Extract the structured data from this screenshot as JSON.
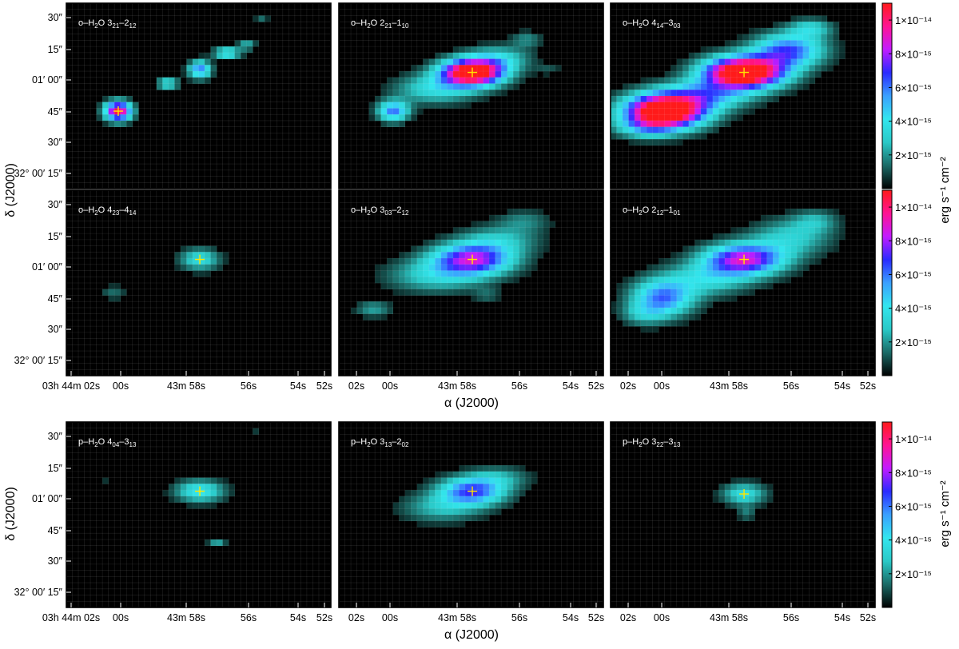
{
  "figure": {
    "colorbar_label": "erg s⁻¹ cm⁻²",
    "colorbar_ticks": [
      "1×10⁻¹⁴",
      "8×10⁻¹⁵",
      "6×10⁻¹⁵",
      "4×10⁻¹⁵",
      "2×10⁻¹⁵"
    ],
    "colormap": [
      "#000000",
      "#1a6a66",
      "#2ac9c7",
      "#33e6ee",
      "#3aa0ff",
      "#2a2aff",
      "#c21cff",
      "#ff1493",
      "#ff1a1a"
    ],
    "marker_color": "#ffe600",
    "background_color": "#000000"
  },
  "chart_data": [
    {
      "type": "heatmap",
      "panel": "o-H2O 321-212",
      "label": {
        "prefix": "o–H",
        "sub": "2",
        "mid": "O 3",
        "sub1": "21",
        "mid2": "–2",
        "sub2": "12"
      },
      "xlabel": "",
      "ylabel": "",
      "y_ticks": [
        "30″",
        "15″",
        "01′ 00″",
        "45″",
        "30″",
        "32° 00′ 15″"
      ],
      "x_ticks": [],
      "xlim_s": [
        2.5,
        51.8
      ],
      "ylim_arcsec": [
        10,
        33
      ],
      "peak_flux": 1.1e-14,
      "blobs": [
        {
          "ra_s": 0.4,
          "dec": 36,
          "amp": 1.05e-14,
          "sx": 0.3,
          "sy": 2.6
        },
        {
          "ra_s": 57.1,
          "dec": 51,
          "amp": 6e-15,
          "sx": 0.25,
          "sy": 2.4
        },
        {
          "ra_s": 58.4,
          "dec": 46,
          "amp": 3.5e-15,
          "sx": 0.25,
          "sy": 1.8
        },
        {
          "ra_s": 56.0,
          "dec": 57,
          "amp": 4.5e-15,
          "sx": 0.3,
          "sy": 1.5
        },
        {
          "ra_s": 55.2,
          "dec": 60,
          "amp": 2.5e-15,
          "sx": 0.2,
          "sy": 1.5
        },
        {
          "ra_s": 54.6,
          "dec": 69,
          "amp": 1.5e-15,
          "sx": 0.15,
          "sy": 1.2
        }
      ]
    },
    {
      "type": "heatmap",
      "panel": "o-H2O 221-110",
      "label": {
        "prefix": "o–H",
        "sub": "2",
        "mid": "O 2",
        "sub1": "21",
        "mid2": "–1",
        "sub2": "10"
      },
      "xlabel": "",
      "ylabel": "",
      "y_ticks": [],
      "x_ticks": [],
      "xlim_s": [
        2.5,
        51.8
      ],
      "ylim_arcsec": [
        10,
        33
      ],
      "peak_flux": 1.1e-14,
      "blobs": [
        {
          "ra_s": 57.1,
          "dec": 50,
          "amp": 1.3e-14,
          "sx": 0.7,
          "sy": 3.6
        },
        {
          "ra_s": 58.6,
          "dec": 44,
          "amp": 3.5e-15,
          "sx": 0.9,
          "sy": 4.0
        },
        {
          "ra_s": 56.0,
          "dec": 55,
          "amp": 3e-15,
          "sx": 0.7,
          "sy": 3.5
        },
        {
          "ra_s": 0.3,
          "dec": 36,
          "amp": 6e-15,
          "sx": 0.35,
          "sy": 2.8
        },
        {
          "ra_s": 54.9,
          "dec": 62,
          "amp": 1.8e-15,
          "sx": 0.35,
          "sy": 2.2
        },
        {
          "ra_s": 54.0,
          "dec": 51,
          "amp": 1e-15,
          "sx": 0.3,
          "sy": 1.5
        }
      ]
    },
    {
      "type": "heatmap",
      "panel": "o-H2O 414-303",
      "label": {
        "prefix": "o–H",
        "sub": "2",
        "mid": "O 4",
        "sub1": "14",
        "mid2": "–3",
        "sub2": "03"
      },
      "xlabel": "",
      "ylabel": "",
      "y_ticks": [],
      "x_ticks": [],
      "xlim_s": [
        2.5,
        51.8
      ],
      "ylim_arcsec": [
        10,
        33
      ],
      "peak_flux": 1.1e-14,
      "blobs": [
        {
          "ra_s": 57.1,
          "dec": 50,
          "amp": 1.4e-14,
          "sx": 0.9,
          "sy": 4.2
        },
        {
          "ra_s": 0.3,
          "dec": 36,
          "amp": 1.4e-14,
          "sx": 0.9,
          "sy": 4.6
        },
        {
          "ra_s": 58.6,
          "dec": 42,
          "amp": 4.5e-15,
          "sx": 1.0,
          "sy": 4.0
        },
        {
          "ra_s": 55.3,
          "dec": 58,
          "amp": 6.5e-15,
          "sx": 0.8,
          "sy": 4.5
        },
        {
          "ra_s": 54.4,
          "dec": 66,
          "amp": 3e-15,
          "sx": 0.5,
          "sy": 2.5
        },
        {
          "ra_s": 1.1,
          "dec": 30,
          "amp": 3e-15,
          "sx": 0.7,
          "sy": 3.0
        }
      ]
    },
    {
      "type": "heatmap",
      "panel": "o-H2O 423-414",
      "label": {
        "prefix": "o–H",
        "sub": "2",
        "mid": "O 4",
        "sub1": "23",
        "mid2": "–4",
        "sub2": "14"
      },
      "xlabel": "",
      "ylabel": "δ (J2000)",
      "y_ticks": [
        "30″",
        "15″",
        "01′ 00″",
        "45″",
        "30″",
        "32° 00′ 15″"
      ],
      "x_ticks": [
        "03h 44m 02s",
        "00s",
        "43m 58s",
        "56s",
        "54s",
        "52s"
      ],
      "xlim_s": [
        2.5,
        51.8
      ],
      "ylim_arcsec": [
        10,
        33
      ],
      "peak_flux": 1.1e-14,
      "blobs": [
        {
          "ra_s": 57.1,
          "dec": 50,
          "amp": 3.6e-15,
          "sx": 0.45,
          "sy": 3.0
        },
        {
          "ra_s": 0.6,
          "dec": 38,
          "amp": 1.4e-15,
          "sx": 0.3,
          "sy": 2.0
        },
        {
          "ra_s": 1.8,
          "dec": 37,
          "amp": 9e-16,
          "sx": 0.25,
          "sy": 1.2
        }
      ]
    },
    {
      "type": "heatmap",
      "panel": "o-H2O 303-212",
      "label": {
        "prefix": "o–H",
        "sub": "2",
        "mid": "O 3",
        "sub1": "03",
        "mid2": "–2",
        "sub2": "12"
      },
      "xlabel": "α (J2000)",
      "ylabel": "",
      "y_ticks": [],
      "x_ticks": [
        "02s",
        "00s",
        "43m 58s",
        "56s",
        "54s",
        "52s"
      ],
      "xlim_s": [
        2.5,
        51.8
      ],
      "ylim_arcsec": [
        10,
        33
      ],
      "peak_flux": 1.1e-14,
      "blobs": [
        {
          "ra_s": 57.1,
          "dec": 50,
          "amp": 8e-15,
          "sx": 0.9,
          "sy": 4.2
        },
        {
          "ra_s": 58.6,
          "dec": 44,
          "amp": 3e-15,
          "sx": 1.1,
          "sy": 4.5
        },
        {
          "ra_s": 56.0,
          "dec": 57,
          "amp": 2.5e-15,
          "sx": 0.9,
          "sy": 4.0
        },
        {
          "ra_s": 1.1,
          "dec": 32,
          "amp": 2.2e-15,
          "sx": 0.4,
          "sy": 2.2
        },
        {
          "ra_s": 55.0,
          "dec": 64,
          "amp": 1.6e-15,
          "sx": 0.6,
          "sy": 3.0
        },
        {
          "ra_s": 56.5,
          "dec": 37,
          "amp": 1.2e-15,
          "sx": 0.3,
          "sy": 2.0
        }
      ]
    },
    {
      "type": "heatmap",
      "panel": "o-H2O 212-101",
      "label": {
        "prefix": "o–H",
        "sub": "2",
        "mid": "O 2",
        "sub1": "12",
        "mid2": "–1",
        "sub2": "01"
      },
      "xlabel": "",
      "ylabel": "",
      "y_ticks": [],
      "x_ticks": [
        "02s",
        "00s",
        "43m 58s",
        "56s",
        "54s",
        "52s"
      ],
      "xlim_s": [
        2.5,
        51.8
      ],
      "ylim_arcsec": [
        10,
        33
      ],
      "peak_flux": 1.1e-14,
      "blobs": [
        {
          "ra_s": 57.1,
          "dec": 50,
          "amp": 8.5e-15,
          "sx": 0.9,
          "sy": 4.2
        },
        {
          "ra_s": 0.4,
          "dec": 36,
          "amp": 6e-15,
          "sx": 0.7,
          "sy": 5.0
        },
        {
          "ra_s": 58.6,
          "dec": 43,
          "amp": 3.2e-15,
          "sx": 1.0,
          "sy": 4.5
        },
        {
          "ra_s": 55.2,
          "dec": 58,
          "amp": 3e-15,
          "sx": 0.9,
          "sy": 5.0
        },
        {
          "ra_s": 54.2,
          "dec": 64,
          "amp": 2e-15,
          "sx": 0.5,
          "sy": 3.0
        },
        {
          "ra_s": 1.2,
          "dec": 30,
          "amp": 2e-15,
          "sx": 0.5,
          "sy": 3.0
        }
      ]
    },
    {
      "type": "heatmap",
      "panel": "p-H2O 404-313",
      "label": {
        "prefix": "p–H",
        "sub": "2",
        "mid": "O 4",
        "sub1": "04",
        "mid2": "–3",
        "sub2": "13"
      },
      "xlabel": "",
      "ylabel": "δ (J2000)",
      "y_ticks": [
        "30″",
        "15″",
        "01′ 00″",
        "45″",
        "30″",
        "32° 00′ 15″"
      ],
      "x_ticks": [
        "03h 44m 02s",
        "00s",
        "43m 58s",
        "56s",
        "54s",
        "52s"
      ],
      "xlim_s": [
        2.5,
        51.8
      ],
      "ylim_arcsec": [
        10,
        33
      ],
      "peak_flux": 1.1e-14,
      "blobs": [
        {
          "ra_s": 57.1,
          "dec": 50,
          "amp": 4.2e-15,
          "sx": 0.55,
          "sy": 3.0
        },
        {
          "ra_s": 56.4,
          "dec": 31,
          "amp": 2.6e-15,
          "sx": 0.2,
          "sy": 1.0
        },
        {
          "ra_s": 0.9,
          "dec": 53,
          "amp": 9e-16,
          "sx": 0.2,
          "sy": 1.0
        },
        {
          "ra_s": 54.8,
          "dec": 72,
          "amp": 8e-16,
          "sx": 0.15,
          "sy": 1.0
        }
      ]
    },
    {
      "type": "heatmap",
      "panel": "p-H2O 313-202",
      "label": {
        "prefix": "p–H",
        "sub": "2",
        "mid": "O 3",
        "sub1": "13",
        "mid2": "–2",
        "sub2": "02"
      },
      "xlabel": "α (J2000)",
      "ylabel": "",
      "y_ticks": [],
      "x_ticks": [
        "02s",
        "00s",
        "43m 58s",
        "56s",
        "54s",
        "52s"
      ],
      "xlim_s": [
        2.5,
        51.8
      ],
      "ylim_arcsec": [
        10,
        33
      ],
      "peak_flux": 1.1e-14,
      "blobs": [
        {
          "ra_s": 57.1,
          "dec": 50,
          "amp": 6.5e-15,
          "sx": 0.75,
          "sy": 3.8
        },
        {
          "ra_s": 58.4,
          "dec": 44,
          "amp": 2.5e-15,
          "sx": 0.9,
          "sy": 4.0
        },
        {
          "ra_s": 56.0,
          "dec": 55,
          "amp": 2e-15,
          "sx": 0.7,
          "sy": 3.0
        },
        {
          "ra_s": 55.7,
          "dec": 64,
          "amp": 8e-16,
          "sx": 0.25,
          "sy": 1.0
        }
      ]
    },
    {
      "type": "heatmap",
      "panel": "p-H2O 322-313",
      "label": {
        "prefix": "p–H",
        "sub": "2",
        "mid": "O 3",
        "sub1": "22",
        "mid2": "–3",
        "sub2": "13"
      },
      "xlabel": "",
      "ylabel": "",
      "y_ticks": [],
      "x_ticks": [
        "02s",
        "00s",
        "43m 58s",
        "56s",
        "54s",
        "52s"
      ],
      "xlim_s": [
        2.5,
        51.8
      ],
      "ylim_arcsec": [
        10,
        33
      ],
      "peak_flux": 1.1e-14,
      "blobs": [
        {
          "ra_s": 57.1,
          "dec": 49,
          "amp": 3.6e-15,
          "sx": 0.5,
          "sy": 3.0
        },
        {
          "ra_s": 57.0,
          "dec": 42,
          "amp": 1.5e-15,
          "sx": 0.2,
          "sy": 2.0
        },
        {
          "ra_s": 55.0,
          "dec": 66,
          "amp": 7e-16,
          "sx": 0.15,
          "sy": 1.5
        }
      ]
    }
  ]
}
